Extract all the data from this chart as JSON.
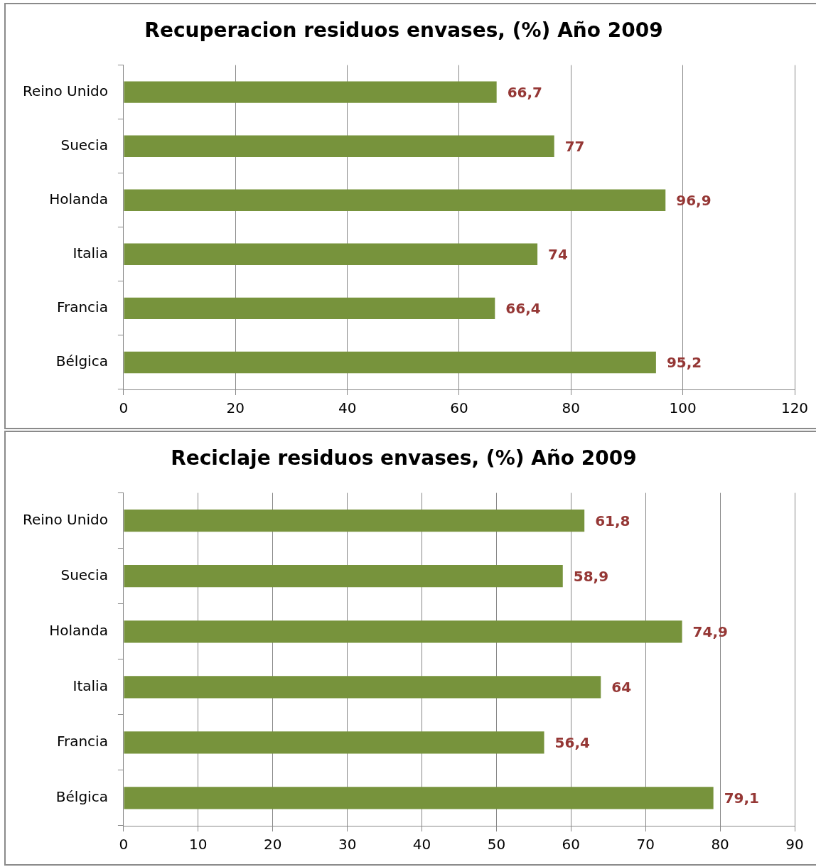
{
  "chart_data": [
    {
      "type": "bar",
      "orientation": "horizontal",
      "title": "Recuperacion residuos envases, (%) Año 2009",
      "categories": [
        "Reino Unido",
        "Suecia",
        "Holanda",
        "Italia",
        "Francia",
        "Bélgica"
      ],
      "values": [
        66.7,
        77,
        96.9,
        74,
        66.4,
        95.2
      ],
      "value_labels": [
        "66,7",
        "77",
        "96,9",
        "74",
        "66,4",
        "95,2"
      ],
      "color": "#77933c",
      "xlim": [
        0,
        120
      ],
      "xticks": [
        0,
        20,
        40,
        60,
        80,
        100,
        120
      ],
      "grid": "x",
      "legend": false
    },
    {
      "type": "bar",
      "orientation": "horizontal",
      "title": "Reciclaje residuos envases, (%) Año 2009",
      "categories": [
        "Reino Unido",
        "Suecia",
        "Holanda",
        "Italia",
        "Francia",
        "Bélgica"
      ],
      "values": [
        61.8,
        58.9,
        74.9,
        64,
        56.4,
        79.1
      ],
      "value_labels": [
        "61,8",
        "58,9",
        "74,9",
        "64",
        "56,4",
        "79,1"
      ],
      "color": "#77933c",
      "xlim": [
        0,
        90
      ],
      "xticks": [
        0,
        10,
        20,
        30,
        40,
        50,
        60,
        70,
        80,
        90
      ],
      "grid": "x",
      "legend": false
    }
  ]
}
